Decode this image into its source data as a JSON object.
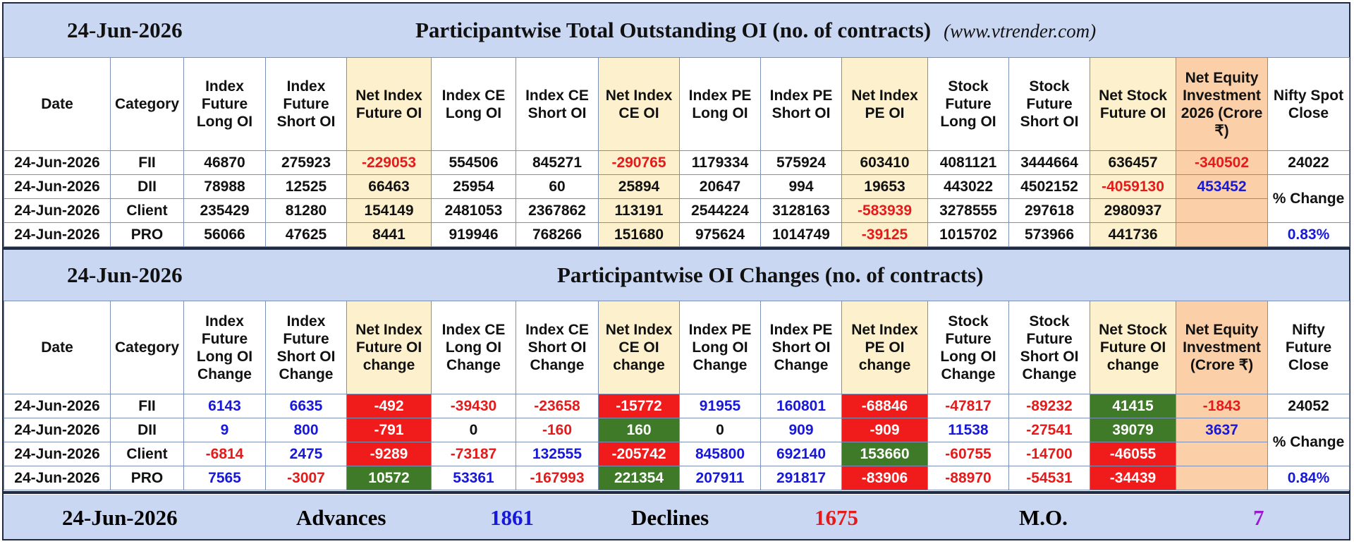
{
  "colors": {
    "band": "#c9d7f3",
    "cream": "#fdf0cc",
    "peach": "#fbd0a8",
    "negative_red": "#e51b1b",
    "positive_blue": "#1818d8",
    "cell_red": "#f01c1c",
    "cell_green": "#3e7a27",
    "mo_purple": "#9a1ad0"
  },
  "section1": {
    "date": "24-Jun-2026",
    "title": "Participantwise Total Outstanding OI (no. of contracts)",
    "site": "(www.vtrender.com)",
    "headers": [
      "Date",
      "Category",
      "Index Future Long OI",
      "Index Future Short OI",
      "Net Index Future OI",
      "Index CE Long OI",
      "Index CE Short OI",
      "Net Index CE OI",
      "Index PE Long OI",
      "Index PE Short OI",
      "Net Index PE OI",
      "Stock Future Long OI",
      "Stock Future Short OI",
      "Net Stock Future OI",
      "Net Equity Investment 2026 (Crore ₹)",
      "Nifty Spot Close"
    ],
    "rows": [
      {
        "date": "24-Jun-2026",
        "cat": "FII",
        "v": [
          "46870",
          "275923",
          "-229053",
          "554506",
          "845271",
          "-290765",
          "1179334",
          "575924",
          "603410",
          "4081121",
          "3444664",
          "636457"
        ],
        "eq": "-340502"
      },
      {
        "date": "24-Jun-2026",
        "cat": "DII",
        "v": [
          "78988",
          "12525",
          "66463",
          "25954",
          "60",
          "25894",
          "20647",
          "994",
          "19653",
          "443022",
          "4502152",
          "-4059130"
        ],
        "eq": "453452"
      },
      {
        "date": "24-Jun-2026",
        "cat": "Client",
        "v": [
          "235429",
          "81280",
          "154149",
          "2481053",
          "2367862",
          "113191",
          "2544224",
          "3128163",
          "-583939",
          "3278555",
          "297618",
          "2980937"
        ],
        "eq": ""
      },
      {
        "date": "24-Jun-2026",
        "cat": "PRO",
        "v": [
          "56066",
          "47625",
          "8441",
          "919946",
          "768266",
          "151680",
          "975624",
          "1014749",
          "-39125",
          "1015702",
          "573966",
          "441736"
        ],
        "eq": ""
      }
    ],
    "nifty_close": "24022",
    "pct_label": "% Change",
    "pct_value": "0.83%"
  },
  "section2": {
    "date": "24-Jun-2026",
    "title": "Participantwise OI Changes (no. of contracts)",
    "headers": [
      "Date",
      "Category",
      "Index Future Long OI Change",
      "Index Future Short OI Change",
      "Net Index Future OI change",
      "Index CE Long OI Change",
      "Index CE Short OI Change",
      "Net Index CE OI change",
      "Index PE Long OI Change",
      "Index PE Short OI Change",
      "Net Index PE OI change",
      "Stock Future Long OI Change",
      "Stock Future Short OI Change",
      "Net Stock Future OI change",
      "Net Equity Investment (Crore ₹)",
      "Nifty Future Close"
    ],
    "rows": [
      {
        "date": "24-Jun-2026",
        "cat": "FII",
        "v": [
          "6143",
          "6635",
          "-492",
          "-39430",
          "-23658",
          "-15772",
          "91955",
          "160801",
          "-68846",
          "-47817",
          "-89232",
          "41415"
        ],
        "eq": "-1843"
      },
      {
        "date": "24-Jun-2026",
        "cat": "DII",
        "v": [
          "9",
          "800",
          "-791",
          "0",
          "-160",
          "160",
          "0",
          "909",
          "-909",
          "11538",
          "-27541",
          "39079"
        ],
        "eq": "3637"
      },
      {
        "date": "24-Jun-2026",
        "cat": "Client",
        "v": [
          "-6814",
          "2475",
          "-9289",
          "-73187",
          "132555",
          "-205742",
          "845800",
          "692140",
          "153660",
          "-60755",
          "-14700",
          "-46055"
        ],
        "eq": ""
      },
      {
        "date": "24-Jun-2026",
        "cat": "PRO",
        "v": [
          "7565",
          "-3007",
          "10572",
          "53361",
          "-167993",
          "221354",
          "207911",
          "291817",
          "-83906",
          "-88970",
          "-54531",
          "-34439"
        ],
        "eq": ""
      }
    ],
    "nifty_close": "24052",
    "pct_label": "% Change",
    "pct_value": "0.84%"
  },
  "footer": {
    "date": "24-Jun-2026",
    "advances_label": "Advances",
    "advances": "1861",
    "declines_label": "Declines",
    "declines": "1675",
    "mo_label": "M.O.",
    "mo": "7"
  }
}
